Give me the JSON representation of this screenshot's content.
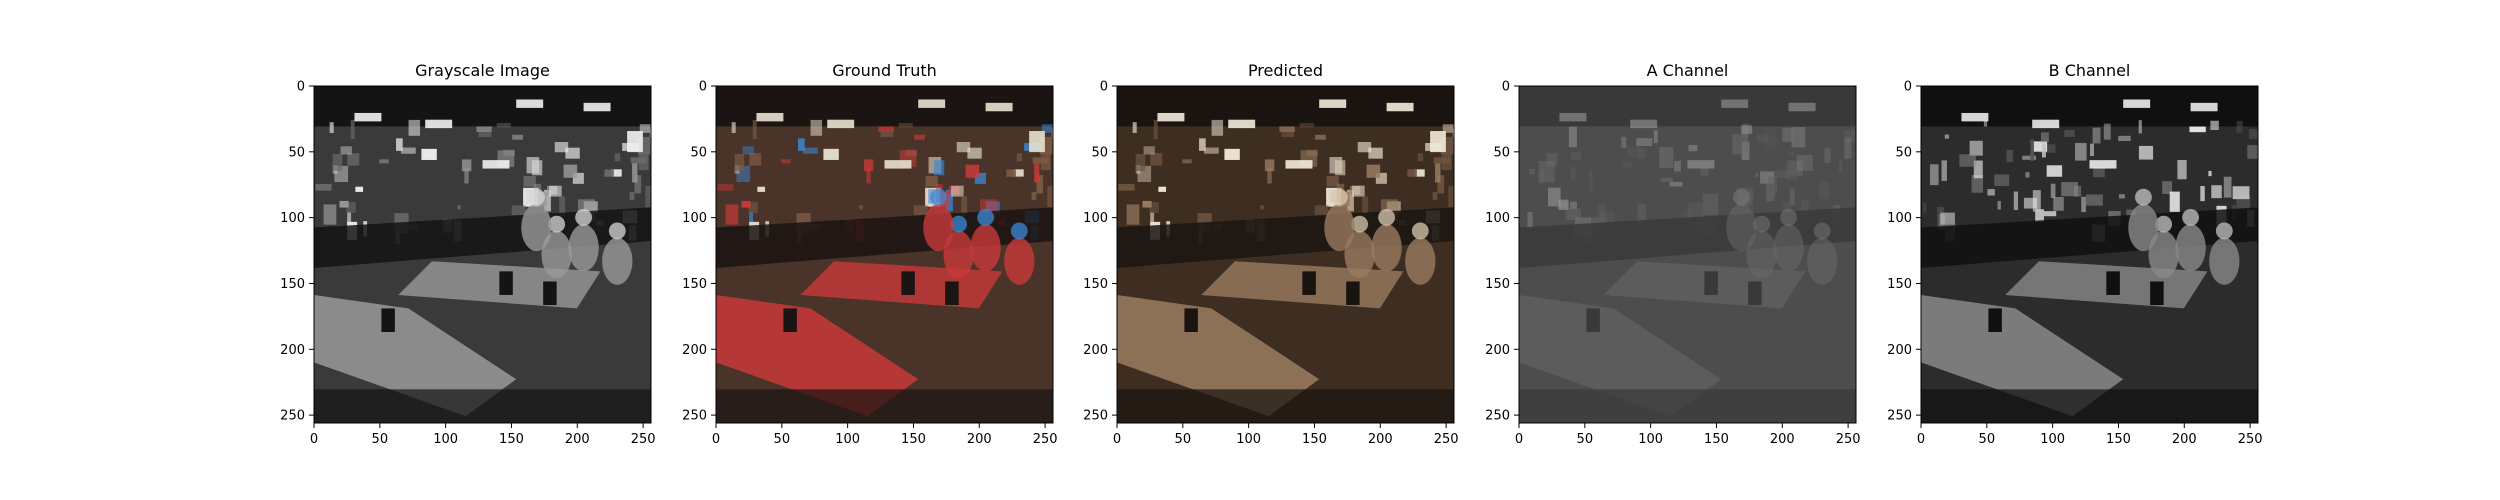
{
  "figure": {
    "background": "#ffffff"
  },
  "chart_data": [
    {
      "type": "image",
      "title": "Grayscale Image",
      "xlabel": "",
      "ylabel": "",
      "xlim": [
        0,
        256
      ],
      "ylim": [
        256,
        0
      ],
      "x_ticks": [
        0,
        50,
        100,
        150,
        200,
        250
      ],
      "y_ticks": [
        0,
        50,
        100,
        150,
        200,
        250
      ],
      "colormap": "gray",
      "palette": [
        "#141414",
        "#3a3a3a",
        "#6a6a6a",
        "#9a9a9a",
        "#d8d8d8",
        "#f2f2f2"
      ]
    },
    {
      "type": "image",
      "title": "Ground Truth",
      "xlabel": "",
      "ylabel": "",
      "xlim": [
        0,
        256
      ],
      "ylim": [
        256,
        0
      ],
      "x_ticks": [
        0,
        50,
        100,
        150,
        200,
        250
      ],
      "y_ticks": [
        0,
        50,
        100,
        150,
        200,
        250
      ],
      "colormap": "rgb",
      "palette": [
        "#1a1412",
        "#4a3328",
        "#7a5a44",
        "#c83a3a",
        "#3a8ad8",
        "#e8e2d0"
      ]
    },
    {
      "type": "image",
      "title": "Predicted",
      "xlabel": "",
      "ylabel": "",
      "xlim": [
        0,
        256
      ],
      "ylim": [
        256,
        0
      ],
      "x_ticks": [
        0,
        50,
        100,
        150,
        200,
        250
      ],
      "y_ticks": [
        0,
        50,
        100,
        150,
        200,
        250
      ],
      "colormap": "rgb",
      "palette": [
        "#1a1410",
        "#3e2e22",
        "#6e5440",
        "#9a7c60",
        "#d8c8b0",
        "#f4ecdc"
      ]
    },
    {
      "type": "image",
      "title": "A Channel",
      "xlabel": "",
      "ylabel": "",
      "xlim": [
        0,
        256
      ],
      "ylim": [
        256,
        0
      ],
      "x_ticks": [
        0,
        50,
        100,
        150,
        200,
        250
      ],
      "y_ticks": [
        0,
        50,
        100,
        150,
        200,
        250
      ],
      "colormap": "gray",
      "palette": [
        "#1e1e1e",
        "#3c3c3c",
        "#555555",
        "#6c6c6c",
        "#8a8a8a",
        "#c0c0c0"
      ]
    },
    {
      "type": "image",
      "title": "B Channel",
      "xlabel": "",
      "ylabel": "",
      "xlim": [
        0,
        256
      ],
      "ylim": [
        256,
        0
      ],
      "x_ticks": [
        0,
        50,
        100,
        150,
        200,
        250
      ],
      "y_ticks": [
        0,
        50,
        100,
        150,
        200,
        250
      ],
      "colormap": "gray",
      "palette": [
        "#101010",
        "#2c2c2c",
        "#555555",
        "#8a8a8a",
        "#c4c4c4",
        "#ececec"
      ]
    }
  ]
}
